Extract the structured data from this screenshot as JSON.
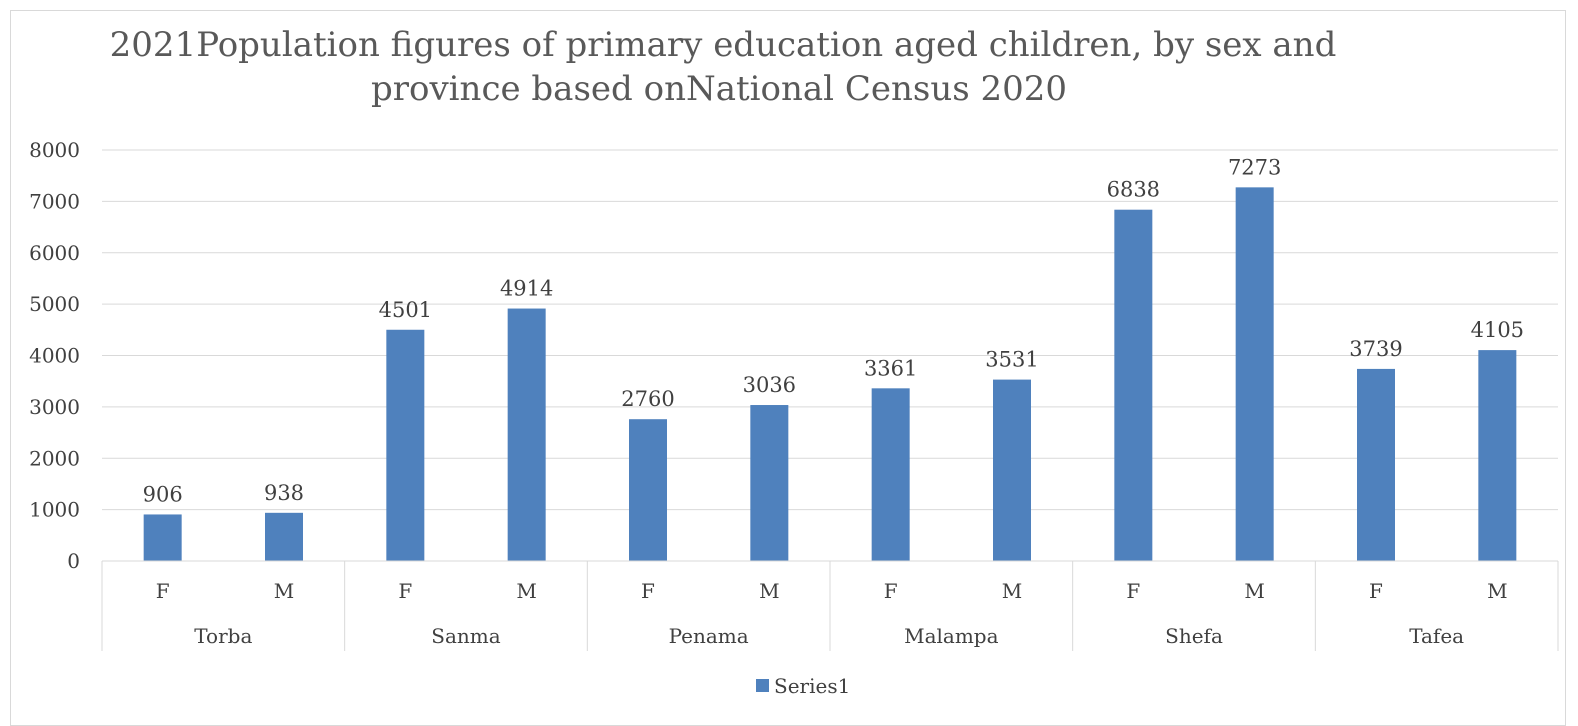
{
  "chart_data": {
    "type": "bar",
    "title_line1": "2021Population figures of primary education aged children, by sex and",
    "title_line2": "province based onNational Census 2020",
    "groups": [
      {
        "label": "Torba",
        "categories": [
          "F",
          "M"
        ],
        "values": [
          906,
          938
        ]
      },
      {
        "label": "Sanma",
        "categories": [
          "F",
          "M"
        ],
        "values": [
          4501,
          4914
        ]
      },
      {
        "label": "Penama",
        "categories": [
          "F",
          "M"
        ],
        "values": [
          2760,
          3036
        ]
      },
      {
        "label": "Malampa",
        "categories": [
          "F",
          "M"
        ],
        "values": [
          3361,
          3531
        ]
      },
      {
        "label": "Shefa",
        "categories": [
          "F",
          "M"
        ],
        "values": [
          6838,
          7273
        ]
      },
      {
        "label": "Tafea",
        "categories": [
          "F",
          "M"
        ],
        "values": [
          3739,
          4105
        ]
      }
    ],
    "series": [
      {
        "name": "Series1"
      }
    ],
    "ylim": [
      0,
      8000
    ],
    "yticks": [
      "0",
      "1000",
      "2000",
      "3000",
      "4000",
      "5000",
      "6000",
      "7000",
      "8000"
    ],
    "grid": true,
    "legend_position": "bottom",
    "bar_color": "#4f81bd"
  }
}
